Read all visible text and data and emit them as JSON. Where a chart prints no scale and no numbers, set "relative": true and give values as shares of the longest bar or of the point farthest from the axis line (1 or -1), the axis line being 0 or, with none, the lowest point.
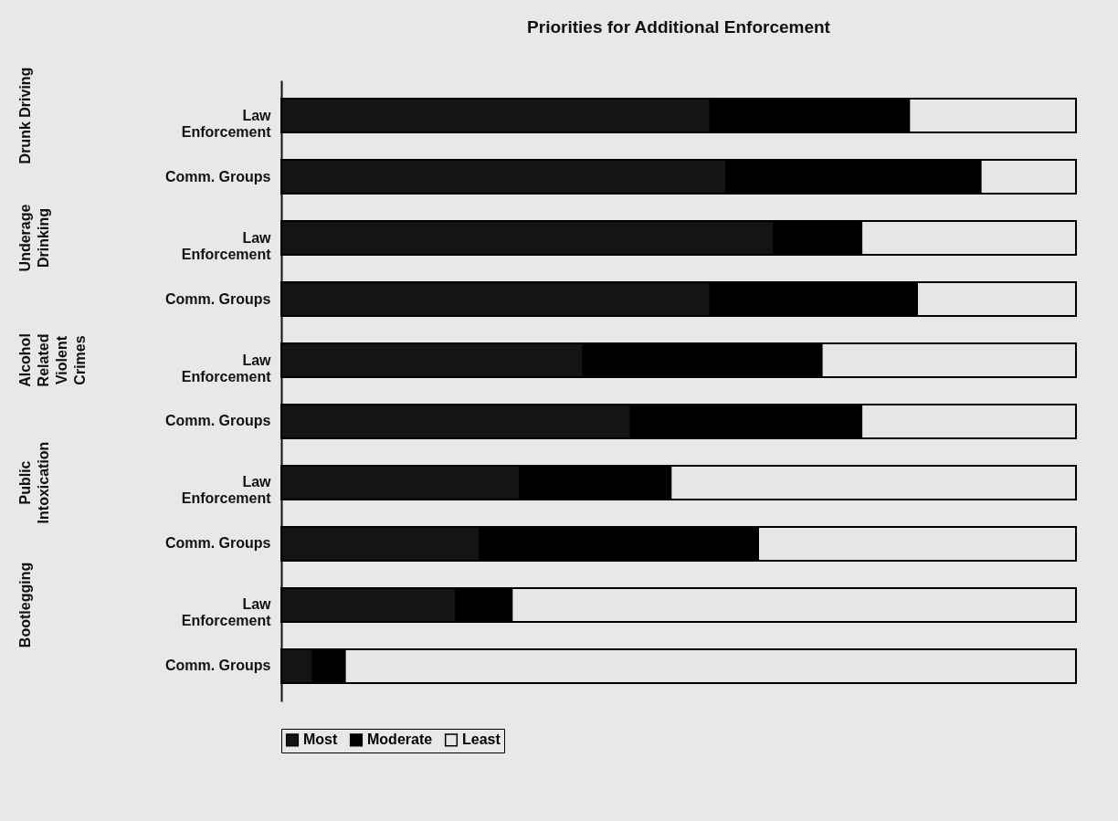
{
  "chart_data": {
    "type": "bar",
    "orientation": "horizontal",
    "stacked": true,
    "relative": true,
    "title": "Priorities for Additional Enforcement",
    "categories": [
      "Law Enforcement",
      "Comm. Groups",
      "Law Enforcement",
      "Comm. Groups",
      "Law Enforcement",
      "Comm. Groups",
      "Law Enforcement",
      "Comm. Groups",
      "Law Enforcement",
      "Comm. Groups"
    ],
    "annotations": [
      "Drunk Driving",
      "Underage Drinking",
      "Alcohol Related Violent Crimes",
      "Public Intoxication",
      "Bootlegging"
    ],
    "series": [
      {
        "name": "Most",
        "color": "#141414",
        "values": [
          0.54,
          0.56,
          0.62,
          0.54,
          0.38,
          0.44,
          0.3,
          0.25,
          0.22,
          0.04
        ]
      },
      {
        "name": "Moderate",
        "color": "#000000",
        "values": [
          0.25,
          0.32,
          0.11,
          0.26,
          0.3,
          0.29,
          0.19,
          0.35,
          0.07,
          0.04
        ]
      },
      {
        "name": "Least",
        "color": "#e6e6e6",
        "values": [
          0.21,
          0.12,
          0.27,
          0.2,
          0.32,
          0.27,
          0.51,
          0.4,
          0.71,
          0.92
        ]
      }
    ],
    "legend": "bottom"
  }
}
